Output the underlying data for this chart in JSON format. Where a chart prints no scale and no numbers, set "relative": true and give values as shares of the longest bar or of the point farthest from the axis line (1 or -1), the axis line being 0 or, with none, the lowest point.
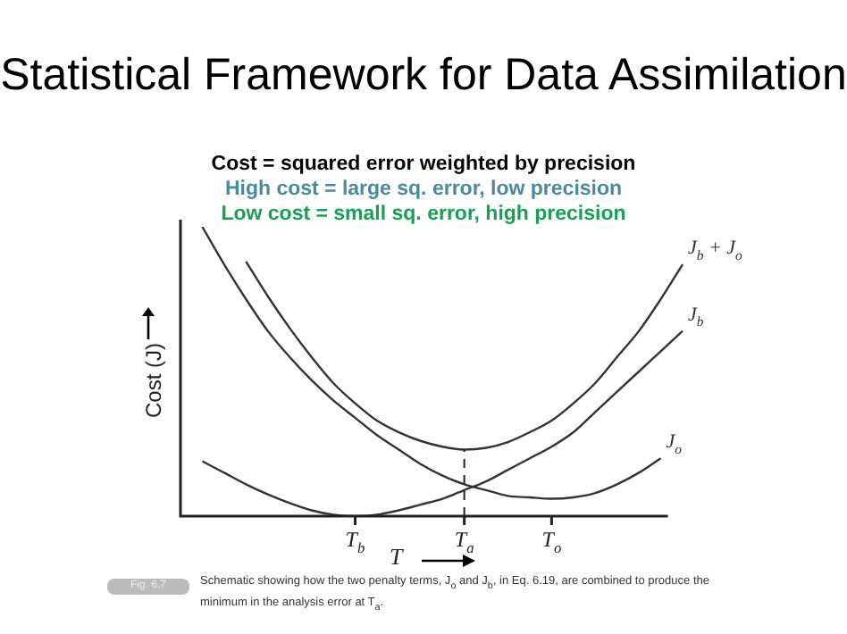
{
  "chart_data": {
    "type": "line",
    "relative": true,
    "title": "Statistical Framework for Data Assimilation",
    "subtitle": "Cost = squared error weighted by precision",
    "xlabel": "T",
    "ylabel": "Cost (J)",
    "annotations": [
      "High cost = large sq. error, low precision",
      "Low cost = small sq. error, high precision",
      "Fig. 6.7",
      "Schematic showing how the two penalty terms, J$_{o}$ and J$_{b}$, in Eq. 6.19, are combined to produce the minimum in the analysis error at T$_{a}$."
    ],
    "categories": [
      null,
      null,
      null,
      null,
      null,
      null,
      null,
      null,
      "T$_{b}$",
      null,
      null,
      null,
      null,
      "T$_{a}$",
      null,
      null,
      null,
      "T$_{o}$",
      null,
      null,
      null,
      null,
      null,
      null
    ],
    "series": [
      {
        "name": "J$_{b}$ + J$_{o}$",
        "color": "#333333",
        "values": [
          null,
          null,
          null,
          0.88,
          0.76,
          0.65,
          0.55,
          0.46,
          0.39,
          0.33,
          0.29,
          0.26,
          0.24,
          0.23,
          0.236,
          0.256,
          0.29,
          0.33,
          0.39,
          0.46,
          0.55,
          0.64,
          0.75,
          0.87
        ]
      },
      {
        "name": "J$_{b}$",
        "color": "#333333",
        "values": [
          null,
          0.19,
          0.15,
          0.11,
          0.075,
          0.045,
          0.02,
          0.005,
          0,
          0.005,
          0.02,
          0.04,
          0.06,
          0.09,
          0.12,
          0.16,
          0.2,
          0.24,
          0.29,
          0.36,
          0.43,
          0.5,
          0.57,
          0.64
        ]
      },
      {
        "name": "J$_{o}$",
        "color": "#333333",
        "values": [
          null,
          1.0,
          0.87,
          0.75,
          0.64,
          0.55,
          0.47,
          0.4,
          0.34,
          0.28,
          0.23,
          0.18,
          0.14,
          0.11,
          0.09,
          0.07,
          0.065,
          0.06,
          0.065,
          0.08,
          0.11,
          0.15,
          0.2,
          null
        ]
      }
    ],
    "ref_lines": [
      {
        "axis": "x",
        "value": "T$_{a}$",
        "line_style": "dashed"
      }
    ],
    "marker": "none",
    "line_style": "solid",
    "legend": false,
    "tick_labels": "x"
  }
}
